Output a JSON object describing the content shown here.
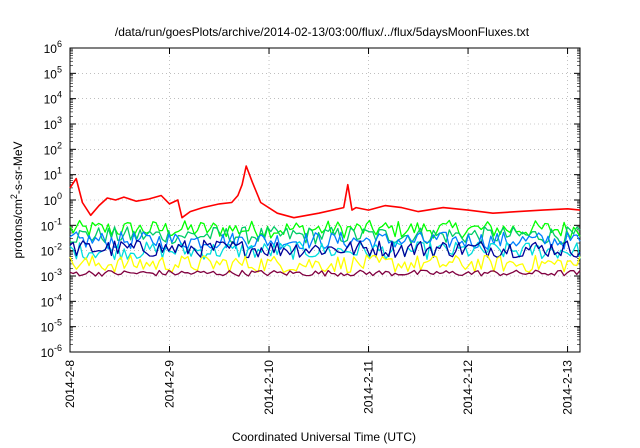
{
  "chart_data": {
    "type": "line",
    "title": "/data/run/goesPlots/archive/2014-02-13/03:00/flux/../flux/5daysMoonFluxes.txt",
    "xlabel": "Coordinated Universal Time (UTC)",
    "ylabel": "protons/cm2-s-sr-MeV",
    "ylabel_parts": {
      "pre": "protons/cm",
      "sup": "2",
      "post": "-s-sr-MeV"
    },
    "y_scale": "log",
    "ylim": [
      1e-06,
      1000000.0
    ],
    "xlim": [
      "2014-02-08T00:00",
      "2014-02-13T03:00"
    ],
    "grid": true,
    "legend": "none",
    "x_ticks": [
      "2014-2-8",
      "2014-2-9",
      "2014-2-10",
      "2014-2-11",
      "2014-2-12",
      "2014-2-13"
    ],
    "y_ticks": [
      {
        "base": "10",
        "exp": "6"
      },
      {
        "base": "10",
        "exp": "5"
      },
      {
        "base": "10",
        "exp": "4"
      },
      {
        "base": "10",
        "exp": "3"
      },
      {
        "base": "10",
        "exp": "2"
      },
      {
        "base": "10",
        "exp": "1"
      },
      {
        "base": "10",
        "exp": "0"
      },
      {
        "base": "10",
        "exp": "-1"
      },
      {
        "base": "10",
        "exp": "-2"
      },
      {
        "base": "10",
        "exp": "-3"
      },
      {
        "base": "10",
        "exp": "-4"
      },
      {
        "base": "10",
        "exp": "-5"
      },
      {
        "base": "10",
        "exp": "-6"
      }
    ],
    "series": [
      {
        "color": "#ff0000",
        "x": [
          "2014-02-08T00:00",
          "2014-02-08T01:30",
          "2014-02-08T03:00",
          "2014-02-08T05:00",
          "2014-02-08T07:00",
          "2014-02-08T09:00",
          "2014-02-08T11:00",
          "2014-02-08T13:00",
          "2014-02-08T16:00",
          "2014-02-08T19:00",
          "2014-02-08T22:00",
          "2014-02-09T00:00",
          "2014-02-09T02:00",
          "2014-02-09T03:00",
          "2014-02-09T05:00",
          "2014-02-09T08:00",
          "2014-02-09T12:00",
          "2014-02-09T15:00",
          "2014-02-09T16:30",
          "2014-02-09T17:30",
          "2014-02-09T18:30",
          "2014-02-09T20:00",
          "2014-02-09T22:00",
          "2014-02-10T02:00",
          "2014-02-10T06:00",
          "2014-02-10T12:00",
          "2014-02-10T18:00",
          "2014-02-10T19:00",
          "2014-02-10T20:00",
          "2014-02-10T21:00",
          "2014-02-11T00:00",
          "2014-02-11T04:00",
          "2014-02-11T08:00",
          "2014-02-11T12:00",
          "2014-02-11T18:00",
          "2014-02-12T00:00",
          "2014-02-12T06:00",
          "2014-02-12T12:00",
          "2014-02-12T18:00",
          "2014-02-13T00:00",
          "2014-02-13T03:00"
        ],
        "y": [
          3,
          7,
          0.8,
          0.25,
          0.6,
          1.2,
          1.0,
          1.3,
          0.9,
          1.1,
          1.5,
          0.7,
          1.0,
          0.2,
          0.35,
          0.5,
          0.7,
          0.8,
          1.5,
          4,
          22,
          5,
          0.8,
          0.3,
          0.2,
          0.3,
          0.5,
          4,
          0.4,
          0.5,
          0.4,
          0.6,
          0.5,
          0.35,
          0.5,
          0.4,
          0.3,
          0.35,
          0.4,
          0.45,
          0.4
        ]
      },
      {
        "color": "#00ff00",
        "y_level": 0.07
      },
      {
        "color": "#00cc66",
        "y_level": 0.04
      },
      {
        "color": "#0080ff",
        "y_level": 0.025
      },
      {
        "color": "#00dddd",
        "y_level": 0.01
      },
      {
        "color": "#000099",
        "y_level": 0.012
      },
      {
        "color": "#ffff00",
        "y_level": 0.003
      },
      {
        "color": "#800040",
        "y_level": 0.0013
      }
    ]
  }
}
